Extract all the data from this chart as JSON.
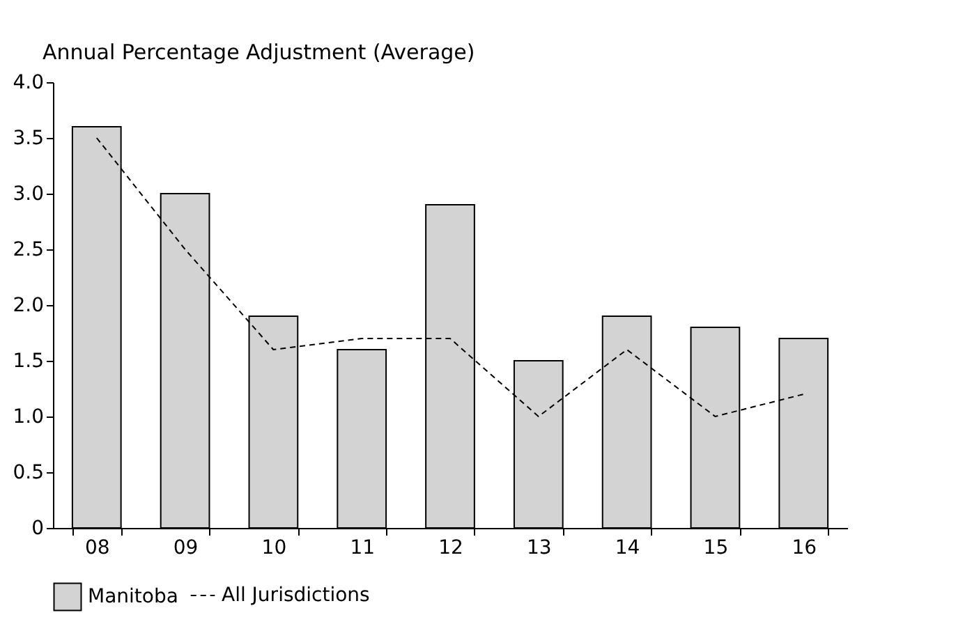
{
  "chart_data": {
    "type": "bar",
    "ylabel": "Annual Percentage Adjustment (Average)",
    "categories": [
      "08",
      "09",
      "10",
      "11",
      "12",
      "13",
      "14",
      "15",
      "16"
    ],
    "series": [
      {
        "name": "Manitoba",
        "color": "#d3d3d3",
        "values": [
          3.6,
          3.0,
          1.9,
          1.6,
          2.9,
          1.5,
          1.9,
          1.8,
          1.7
        ]
      },
      {
        "name": "All Jurisdictions",
        "type": "line",
        "color": "#000000",
        "line_style": "dashed",
        "marker": "none",
        "values": [
          3.5,
          2.5,
          1.6,
          1.7,
          1.7,
          1.0,
          1.6,
          1.0,
          1.2
        ]
      }
    ],
    "ylim": [
      0,
      4
    ],
    "yticks": [
      0,
      {
        "value": 0.5,
        "label": "0.5"
      },
      {
        "value": 1,
        "label": "1.0"
      },
      {
        "value": 1.5,
        "label": "1.5"
      },
      {
        "value": 2,
        "label": "2.0"
      },
      {
        "value": 2.5,
        "label": "2.5"
      },
      {
        "value": 3,
        "label": "3.0"
      },
      {
        "value": 3.5,
        "label": "3.5"
      },
      {
        "value": 4,
        "label": "4.0"
      }
    ],
    "grid": false,
    "legend": "bottom"
  }
}
